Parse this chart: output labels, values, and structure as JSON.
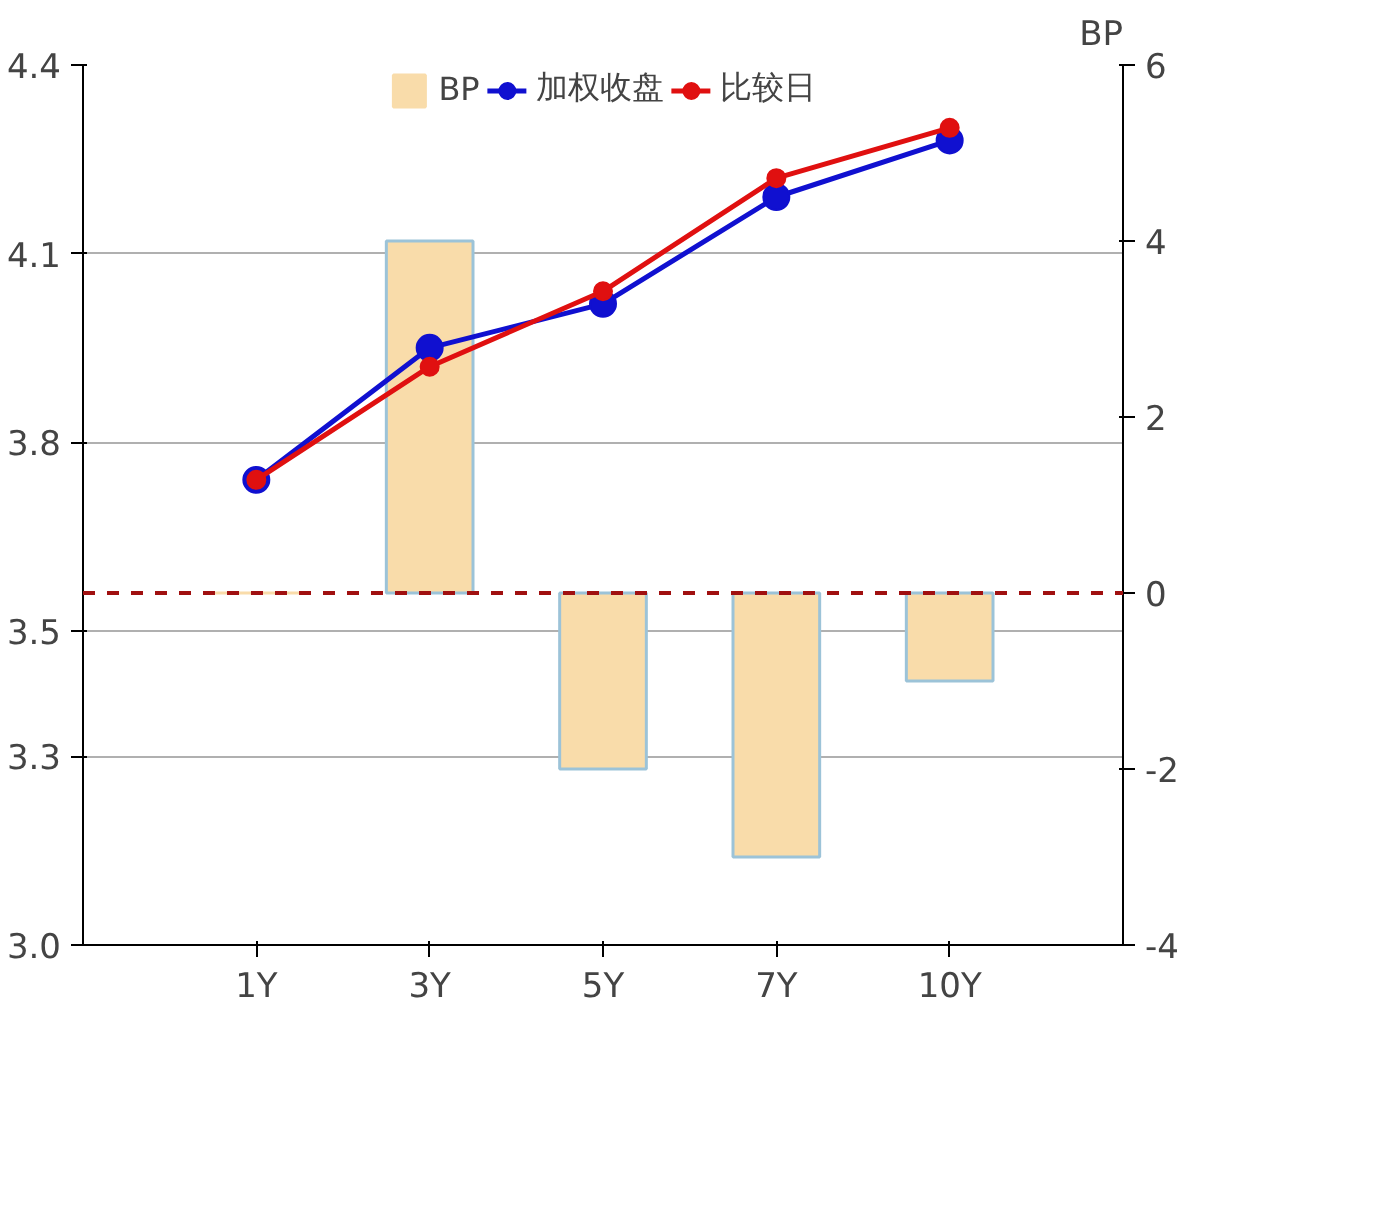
{
  "chart_data": {
    "type": "line",
    "categories": [
      "1Y",
      "3Y",
      "5Y",
      "7Y",
      "10Y"
    ],
    "y2label": "BP",
    "series": [
      {
        "name": "BP",
        "type": "bar",
        "axis": "y2",
        "color": "#f9dcaa",
        "values": [
          0,
          4,
          -2,
          -3,
          -1
        ]
      },
      {
        "name": "加权收盘",
        "color": "#1010d0",
        "values": [
          3.74,
          3.95,
          4.02,
          4.19,
          4.28
        ]
      },
      {
        "name": "比较日",
        "color": "#e01010",
        "values": [
          3.74,
          3.92,
          4.04,
          4.22,
          4.3
        ]
      }
    ],
    "ylim": [
      3.0,
      4.4
    ],
    "yticks": [
      {
        "value": 3.0,
        "label": "3.0"
      },
      3.3,
      3.5,
      3.8,
      4.1,
      4.4
    ],
    "y2lim": [
      -4,
      6
    ],
    "y2ticks": [
      -4,
      -2,
      0,
      2,
      4,
      6
    ],
    "ref_lines": [
      {
        "axis": "y2",
        "value": 0,
        "color": "#a01010",
        "line_style": "dashed"
      }
    ],
    "grid": "y",
    "legend": "top",
    "marker": "circle"
  }
}
